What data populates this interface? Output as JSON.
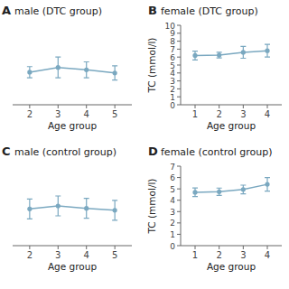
{
  "chart_data": [
    {
      "type": "line",
      "annotation": "A",
      "title": "male (DTC group)",
      "xlabel": "Age group",
      "x": [
        2,
        3,
        4,
        5
      ],
      "values": [
        5.05,
        5.35,
        5.2,
        5.0
      ],
      "yerr": [
        0.35,
        0.65,
        0.5,
        0.45
      ],
      "color": "#7aA8C0",
      "marker": "o",
      "xlim": [
        1.4,
        5.6
      ],
      "xticks": [
        2,
        3,
        4,
        5
      ],
      "ylim": [
        3.0,
        8.0
      ],
      "tick_labels": "x"
    },
    {
      "type": "line",
      "annotation": "B",
      "title": "female (DTC group)",
      "xlabel": "Age group",
      "ylabel": "TC (mmol/l)",
      "x": [
        1,
        2,
        3,
        4
      ],
      "values": [
        6.2,
        6.25,
        6.6,
        6.8
      ],
      "yerr": [
        0.55,
        0.35,
        0.75,
        0.8
      ],
      "color": "#7aA8C0",
      "marker": "o",
      "xlim": [
        0.4,
        4.6
      ],
      "xticks": [
        1,
        2,
        3,
        4
      ],
      "ylim": [
        0,
        10
      ],
      "yticks": [
        0,
        1,
        2,
        3,
        4,
        5,
        6,
        7,
        8,
        9,
        10
      ]
    },
    {
      "type": "line",
      "annotation": "C",
      "title": "male (control group)",
      "xlabel": "Age group",
      "x": [
        2,
        3,
        4,
        5
      ],
      "values": [
        4.85,
        5.0,
        4.88,
        4.78
      ],
      "yerr": [
        0.5,
        0.5,
        0.5,
        0.5
      ],
      "color": "#7aA8C0",
      "marker": "o",
      "xlim": [
        1.4,
        5.6
      ],
      "xticks": [
        2,
        3,
        4,
        5
      ],
      "ylim": [
        3.0,
        7.0
      ],
      "tick_labels": "x"
    },
    {
      "type": "line",
      "annotation": "D",
      "title": "female (control group)",
      "xlabel": "Age group",
      "ylabel": "TC (mmol/l)",
      "x": [
        1,
        2,
        3,
        4
      ],
      "values": [
        4.7,
        4.75,
        4.95,
        5.4
      ],
      "yerr": [
        0.38,
        0.32,
        0.38,
        0.6
      ],
      "color": "#7aA8C0",
      "marker": "o",
      "xlim": [
        0.4,
        4.6
      ],
      "xticks": [
        1,
        2,
        3,
        4
      ],
      "ylim": [
        0,
        7
      ],
      "yticks": [
        0,
        1,
        2,
        3,
        4,
        5,
        6,
        7
      ]
    }
  ]
}
